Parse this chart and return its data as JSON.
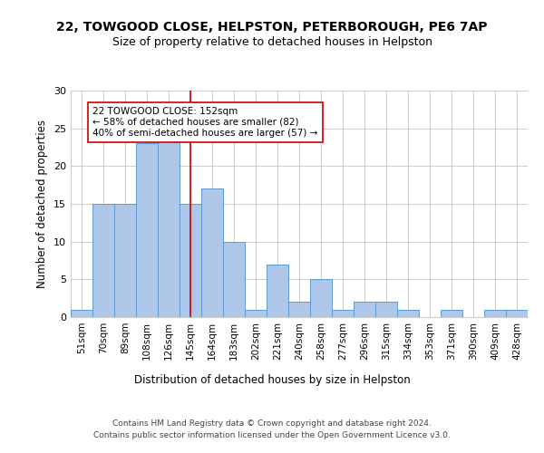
{
  "title1": "22, TOWGOOD CLOSE, HELPSTON, PETERBOROUGH, PE6 7AP",
  "title2": "Size of property relative to detached houses in Helpston",
  "xlabel": "Distribution of detached houses by size in Helpston",
  "ylabel": "Number of detached properties",
  "categories": [
    "51sqm",
    "70sqm",
    "89sqm",
    "108sqm",
    "126sqm",
    "145sqm",
    "164sqm",
    "183sqm",
    "202sqm",
    "221sqm",
    "240sqm",
    "258sqm",
    "277sqm",
    "296sqm",
    "315sqm",
    "334sqm",
    "353sqm",
    "371sqm",
    "390sqm",
    "409sqm",
    "428sqm"
  ],
  "values": [
    1,
    15,
    15,
    23,
    24,
    15,
    17,
    10,
    1,
    7,
    2,
    5,
    1,
    2,
    2,
    1,
    0,
    1,
    0,
    1,
    1
  ],
  "bar_color": "#aec6e8",
  "bar_edge_color": "#5b9bd5",
  "vline_x": 5.0,
  "vline_color": "#cc0000",
  "annotation_text": "22 TOWGOOD CLOSE: 152sqm\n← 58% of detached houses are smaller (82)\n40% of semi-detached houses are larger (57) →",
  "annotation_box_color": "#ffffff",
  "annotation_box_edge": "#cc0000",
  "ylim": [
    0,
    30
  ],
  "yticks": [
    0,
    5,
    10,
    15,
    20,
    25,
    30
  ],
  "footer1": "Contains HM Land Registry data © Crown copyright and database right 2024.",
  "footer2": "Contains public sector information licensed under the Open Government Licence v3.0.",
  "bg_color": "#ffffff",
  "grid_color": "#cccccc"
}
